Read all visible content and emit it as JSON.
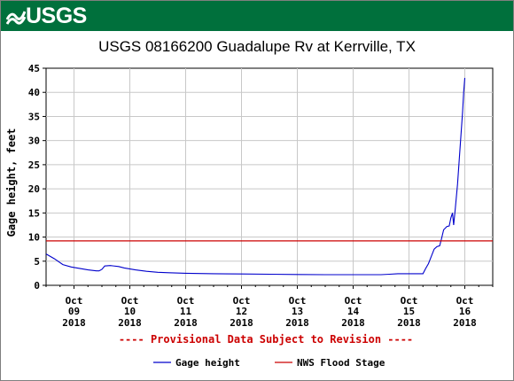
{
  "header": {
    "logo_text": "USGS",
    "brand_color": "#00703c",
    "logo_icon": "usgs-wave-icon"
  },
  "chart_data": {
    "type": "line",
    "title": "USGS 08166200 Guadalupe Rv at Kerrville, TX",
    "ylabel": "Gage height, feet",
    "xlabel": "",
    "ylim": [
      0,
      45
    ],
    "yticks": [
      0,
      5,
      10,
      15,
      20,
      25,
      30,
      35,
      40,
      45
    ],
    "x_unit": "days since 2018-10-09 00:00",
    "xlim": [
      -0.5,
      7.5
    ],
    "xticks": [
      {
        "x": 0,
        "month": "Oct",
        "day": "09",
        "year": "2018"
      },
      {
        "x": 1,
        "month": "Oct",
        "day": "10",
        "year": "2018"
      },
      {
        "x": 2,
        "month": "Oct",
        "day": "11",
        "year": "2018"
      },
      {
        "x": 3,
        "month": "Oct",
        "day": "12",
        "year": "2018"
      },
      {
        "x": 4,
        "month": "Oct",
        "day": "13",
        "year": "2018"
      },
      {
        "x": 5,
        "month": "Oct",
        "day": "14",
        "year": "2018"
      },
      {
        "x": 6,
        "month": "Oct",
        "day": "15",
        "year": "2018"
      },
      {
        "x": 7,
        "month": "Oct",
        "day": "16",
        "year": "2018"
      }
    ],
    "grid": true,
    "series": [
      {
        "name": "Gage height",
        "color": "#0000cc",
        "points": [
          [
            -0.5,
            6.5
          ],
          [
            -0.35,
            5.5
          ],
          [
            -0.2,
            4.3
          ],
          [
            -0.05,
            3.8
          ],
          [
            0.1,
            3.5
          ],
          [
            0.25,
            3.2
          ],
          [
            0.4,
            3.0
          ],
          [
            0.45,
            3.0
          ],
          [
            0.5,
            3.3
          ],
          [
            0.55,
            4.0
          ],
          [
            0.65,
            4.1
          ],
          [
            0.8,
            3.9
          ],
          [
            0.9,
            3.6
          ],
          [
            1.1,
            3.2
          ],
          [
            1.3,
            2.9
          ],
          [
            1.5,
            2.7
          ],
          [
            1.7,
            2.6
          ],
          [
            2.0,
            2.5
          ],
          [
            2.5,
            2.4
          ],
          [
            3.0,
            2.35
          ],
          [
            3.5,
            2.3
          ],
          [
            4.0,
            2.25
          ],
          [
            4.5,
            2.2
          ],
          [
            5.0,
            2.2
          ],
          [
            5.5,
            2.2
          ],
          [
            5.65,
            2.3
          ],
          [
            5.8,
            2.4
          ],
          [
            6.05,
            2.4
          ],
          [
            6.25,
            2.4
          ],
          [
            6.3,
            3.5
          ],
          [
            6.35,
            4.5
          ],
          [
            6.4,
            6.0
          ],
          [
            6.45,
            7.5
          ],
          [
            6.5,
            8.0
          ],
          [
            6.55,
            8.2
          ],
          [
            6.58,
            9.5
          ],
          [
            6.62,
            11.5
          ],
          [
            6.68,
            12.2
          ],
          [
            6.72,
            12.3
          ],
          [
            6.75,
            14.0
          ],
          [
            6.78,
            15.0
          ],
          [
            6.8,
            12.5
          ],
          [
            6.83,
            16.0
          ],
          [
            6.87,
            21.0
          ],
          [
            6.9,
            26.0
          ],
          [
            6.93,
            31.0
          ],
          [
            6.96,
            36.0
          ],
          [
            6.98,
            40.0
          ],
          [
            7.0,
            43.0
          ]
        ]
      },
      {
        "name": "NWS Flood Stage",
        "color": "#cc0000",
        "type": "hline",
        "value": 9.2
      }
    ],
    "annotation": "---- Provisional Data Subject to Revision ----",
    "legend": {
      "placement": "bottom",
      "items": [
        {
          "label": "Gage height",
          "color": "#0000cc"
        },
        {
          "label": "NWS Flood Stage",
          "color": "#cc0000"
        }
      ]
    }
  }
}
